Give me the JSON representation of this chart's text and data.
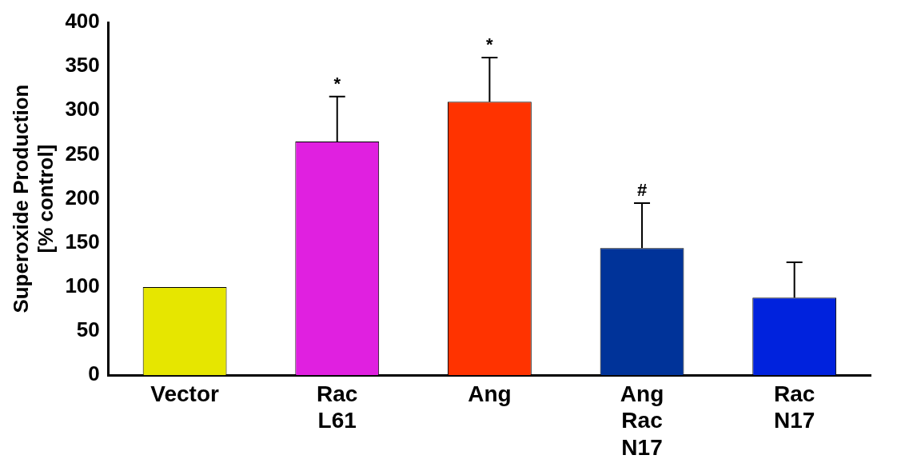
{
  "chart_data": {
    "type": "bar",
    "ylabel": "Superoxide Production [% control]",
    "categories": [
      "Vector",
      "Rac L61",
      "Ang",
      "Ang Rac N17",
      "Rac N17"
    ],
    "values": [
      100,
      265,
      310,
      144,
      88
    ],
    "colors": [
      "#e6e600",
      "#e020e0",
      "#ff3300",
      "#003399",
      "#0022dd"
    ],
    "errors": [
      null,
      [
        265,
        316
      ],
      [
        310,
        360
      ],
      [
        144,
        195
      ],
      [
        88,
        128
      ]
    ],
    "annotations": [
      {
        "text": "*",
        "x": "Rac L61",
        "y": 316
      },
      {
        "text": "*",
        "x": "Ang",
        "y": 360
      },
      {
        "text": "#",
        "x": "Ang Rac N17",
        "y": 195
      }
    ],
    "ylim": [
      0,
      400
    ],
    "yticks": [
      0,
      50,
      100,
      150,
      200,
      250,
      300,
      350,
      400
    ],
    "grid": false,
    "legend": false
  }
}
